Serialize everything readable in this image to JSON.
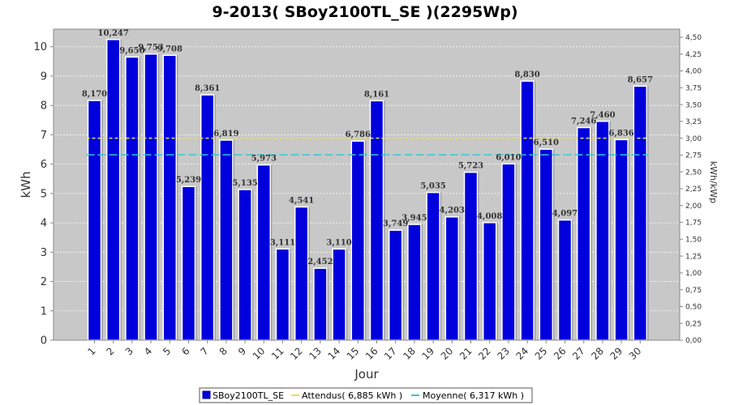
{
  "chart_data": {
    "type": "bar",
    "title": "9-2013( SBoy2100TL_SE )(2295Wp)",
    "xlabel": "Jour",
    "ylabel": "kWh",
    "ylabel_right": "kWh/kWp",
    "ylim": [
      0,
      10.6
    ],
    "ylim_right": [
      0,
      4.62
    ],
    "yticks": [
      0,
      1,
      2,
      3,
      4,
      5,
      6,
      7,
      8,
      9,
      10
    ],
    "yticks_right": [
      "0,00",
      "0,25",
      "0,50",
      "0,75",
      "1,00",
      "1,25",
      "1,50",
      "1,75",
      "2,00",
      "2,25",
      "2,50",
      "2,75",
      "3,00",
      "3,25",
      "3,50",
      "3,75",
      "4,00",
      "4,25",
      "4,50"
    ],
    "grid": true,
    "legend_position": "bottom",
    "colors": {
      "bar": "#0000dd",
      "bar_edge": "#00008a",
      "expected": "#e0e070",
      "average": "#30c8d0",
      "plot_bg": "#c8c8c8"
    },
    "categories": [
      "1",
      "2",
      "3",
      "4",
      "5",
      "6",
      "7",
      "8",
      "9",
      "10",
      "11",
      "12",
      "13",
      "14",
      "15",
      "16",
      "17",
      "18",
      "19",
      "20",
      "21",
      "22",
      "23",
      "24",
      "25",
      "26",
      "27",
      "28",
      "29",
      "30"
    ],
    "series": [
      {
        "name": "SBoy2100TL_SE",
        "values": [
          8.17,
          10.247,
          9.65,
          9.753,
          9.708,
          5.239,
          8.361,
          6.819,
          5.135,
          5.973,
          3.111,
          4.541,
          2.452,
          3.11,
          6.786,
          8.161,
          3.749,
          3.945,
          5.035,
          4.203,
          5.723,
          4.008,
          6.01,
          8.83,
          6.51,
          4.097,
          7.246,
          7.46,
          6.836,
          8.657
        ],
        "labels": [
          "8,170",
          "10,247",
          "9,650",
          "9,753",
          "9,708",
          "5,239",
          "8,361",
          "6,819",
          "5,135",
          "5,973",
          "3,111",
          "4,541",
          "2,452",
          "3,110",
          "6,786",
          "8,161",
          "3,749",
          "3,945",
          "5,035",
          "4,203",
          "5,723",
          "4,008",
          "6,010",
          "8,830",
          "6,510",
          "4,097",
          "7,246",
          "7,460",
          "6,836",
          "8,657"
        ]
      }
    ],
    "reference_lines": [
      {
        "name": "Attendus( 6,885 kWh )",
        "value": 6.885,
        "style": "dashed"
      },
      {
        "name": "Moyenne( 6,317 kWh )",
        "value": 6.317,
        "style": "dashed"
      }
    ]
  }
}
